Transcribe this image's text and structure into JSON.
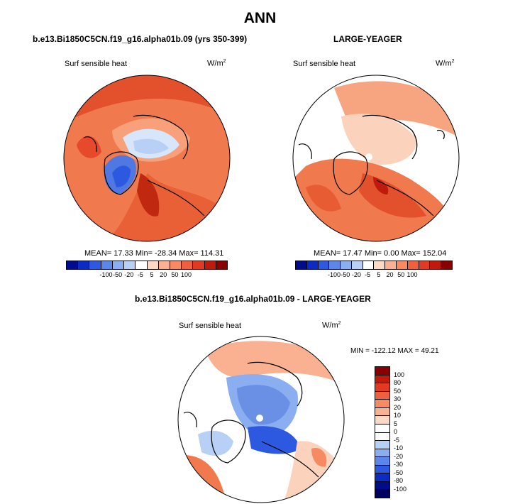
{
  "figure": {
    "title": "ANN"
  },
  "panel_left": {
    "title": "b.e13.Bi1850C5CN.f19_g16.alpha01b.09 (yrs 350-399)",
    "variable": "Surf sensible heat",
    "units_base": "W/m",
    "units_exp": "2",
    "stats": "MEAN=  17.33  Min= -28.34  Max= 114.31"
  },
  "panel_right": {
    "title": "LARGE-YEAGER",
    "variable": "Surf sensible heat",
    "units_base": "W/m",
    "units_exp": "2",
    "stats": "MEAN=  17.47  Min=   0.00  Max= 152.04"
  },
  "panel_diff": {
    "title": "b.e13.Bi1850C5CN.f19_g16.alpha01b.09 - LARGE-YEAGER",
    "variable": "Surf sensible heat",
    "units_base": "W/m",
    "units_exp": "2",
    "stats": "MIN = -122.12 MAX =  49.21"
  },
  "colorbar_top": {
    "ticks": [
      "-100",
      "-50",
      "-20",
      "-5",
      "5",
      "20",
      "50",
      "100"
    ],
    "colors": [
      "#000d8a",
      "#0a2cc4",
      "#2d59e0",
      "#5b86ea",
      "#8aaef0",
      "#b8d0f6",
      "#ffffff",
      "#fcd9c4",
      "#fab191",
      "#f78a63",
      "#f0603e",
      "#e03b22",
      "#c01a0c",
      "#8a0000"
    ]
  },
  "colorbar_diff": {
    "ticks": [
      "100",
      "80",
      "50",
      "30",
      "20",
      "10",
      "5",
      "0",
      "-5",
      "-10",
      "-20",
      "-30",
      "-50",
      "-80",
      "-100"
    ],
    "colors": [
      "#8a0000",
      "#c01a0c",
      "#e03b22",
      "#f0603e",
      "#f78a63",
      "#fab191",
      "#fcd9c4",
      "#ffffff",
      "#ffffff",
      "#b8d0f6",
      "#8aaef0",
      "#5b86ea",
      "#2d59e0",
      "#0a2cc4",
      "#000d8a",
      "#000060"
    ]
  }
}
